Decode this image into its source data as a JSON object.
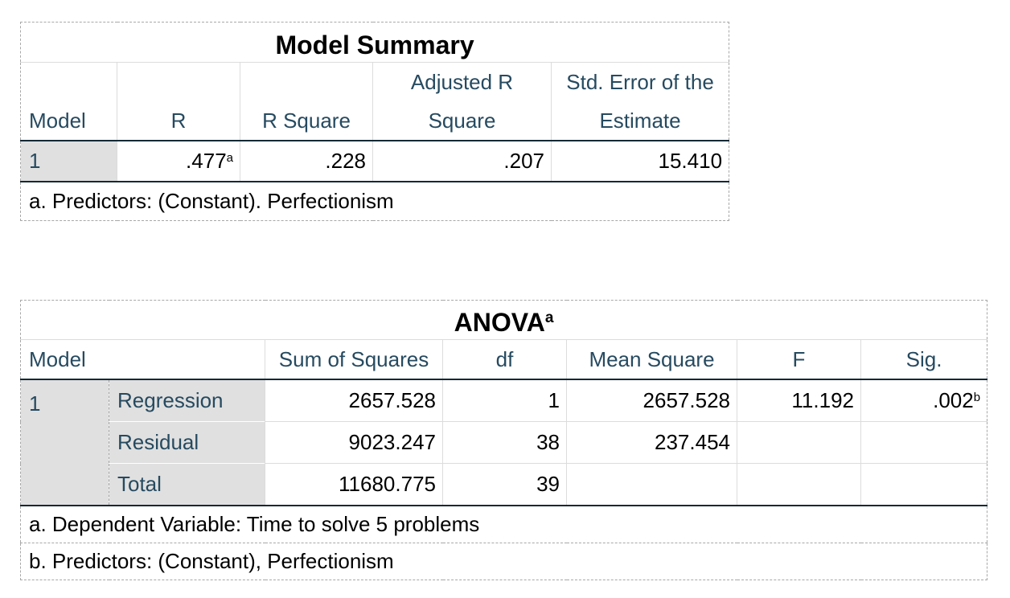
{
  "model_summary": {
    "title": "Model Summary",
    "headers": {
      "model": "Model",
      "r": "R",
      "r_square": "R Square",
      "adj_r_square_line1": "Adjusted R",
      "adj_r_square_line2": "Square",
      "std_error_line1": "Std. Error of the",
      "std_error_line2": "Estimate"
    },
    "row": {
      "model": "1",
      "r": ".477",
      "r_note": "a",
      "r_square": ".228",
      "adj_r_square": ".207",
      "std_error": "15.410"
    },
    "footnote": "a. Predictors: (Constant). Perfectionism"
  },
  "anova": {
    "title": "ANOVA",
    "title_note": "a",
    "headers": {
      "model": "Model",
      "sum_of_squares": "Sum of Squares",
      "df": "df",
      "mean_square": "Mean Square",
      "f": "F",
      "sig": "Sig."
    },
    "model": "1",
    "rows": [
      {
        "label": "Regression",
        "sum_of_squares": "2657.528",
        "df": "1",
        "mean_square": "2657.528",
        "f": "11.192",
        "sig": ".002",
        "sig_note": "b"
      },
      {
        "label": "Residual",
        "sum_of_squares": "9023.247",
        "df": "38",
        "mean_square": "237.454",
        "f": "",
        "sig": ""
      },
      {
        "label": "Total",
        "sum_of_squares": "11680.775",
        "df": "39",
        "mean_square": "",
        "f": "",
        "sig": ""
      }
    ],
    "footnotes": [
      "a. Dependent Variable: Time to solve 5 problems",
      "b. Predictors: (Constant), Perfectionism"
    ]
  }
}
